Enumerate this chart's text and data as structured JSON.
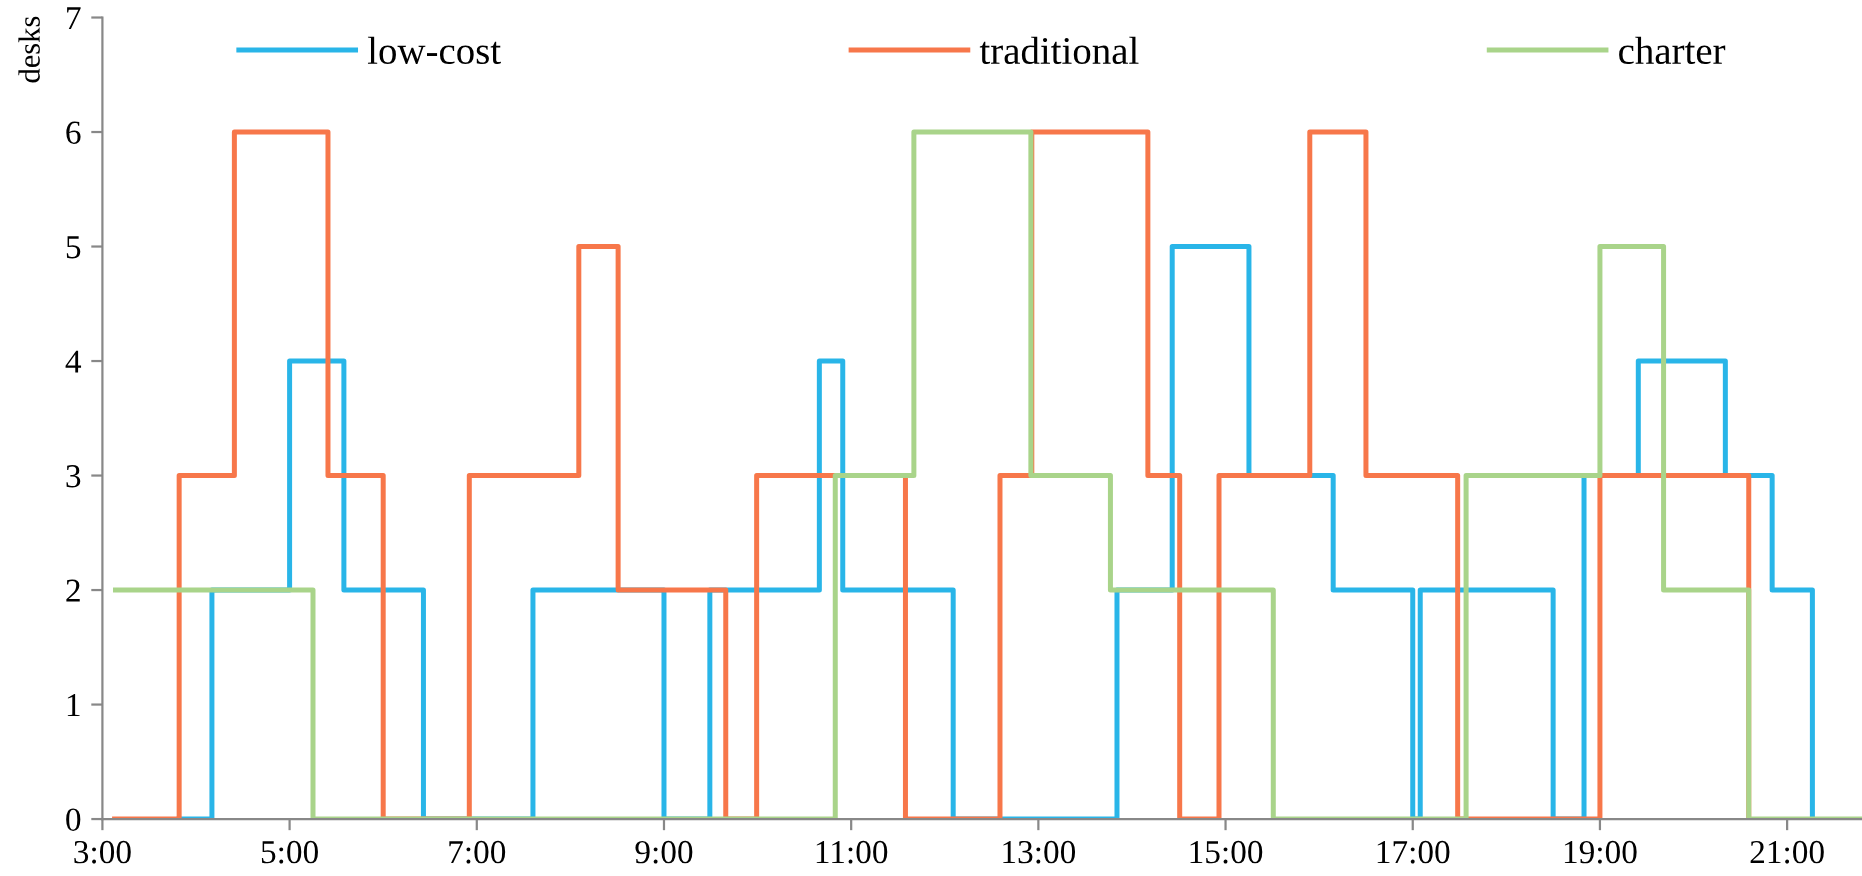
{
  "chart_data": {
    "type": "step",
    "ylabel": "desks",
    "xlim": [
      3,
      21.8
    ],
    "ylim": [
      0,
      7
    ],
    "xticks": [
      {
        "value": 3,
        "label": "3:00"
      },
      {
        "value": 5,
        "label": "5:00"
      },
      {
        "value": 7,
        "label": "7:00"
      },
      {
        "value": 9,
        "label": "9:00"
      },
      {
        "value": 11,
        "label": "11:00"
      },
      {
        "value": 13,
        "label": "13:00"
      },
      {
        "value": 15,
        "label": "15:00"
      },
      {
        "value": 17,
        "label": "17:00"
      },
      {
        "value": 19,
        "label": "19:00"
      },
      {
        "value": 21,
        "label": "21:00"
      }
    ],
    "yticks": [
      0,
      1,
      2,
      3,
      4,
      5,
      6,
      7
    ],
    "grid": false,
    "legend": "top",
    "marker": "none",
    "line_style": "solid",
    "series": [
      {
        "name": "low-cost",
        "color": "#29b5e8",
        "x": [
          3.82,
          4.17,
          5.0,
          5.58,
          6.43,
          7.6,
          9.0,
          9.49,
          10.66,
          10.91,
          12.09,
          13.84,
          14.43,
          15.25,
          16.15,
          17.0,
          17.08,
          18.5,
          18.83,
          19.41,
          20.34,
          20.84,
          21.27
        ],
        "values": [
          0,
          2,
          4,
          2,
          0,
          2,
          0,
          2,
          4,
          2,
          0,
          2,
          5,
          3,
          2,
          0,
          2,
          0,
          3,
          4,
          3,
          2,
          0
        ]
      },
      {
        "name": "traditional",
        "color": "#f7774a",
        "x": [
          3.13,
          3.82,
          4.41,
          5.41,
          6.0,
          6.92,
          8.09,
          8.51,
          9.66,
          9.99,
          11.58,
          12.59,
          12.93,
          14.17,
          14.51,
          14.93,
          15.9,
          16.5,
          17.48,
          19.0,
          20.59
        ],
        "values": [
          0,
          3,
          6,
          3,
          0,
          3,
          5,
          2,
          0,
          3,
          0,
          3,
          6,
          3,
          0,
          3,
          6,
          3,
          0,
          3,
          0
        ]
      },
      {
        "name": "charter",
        "color": "#a9d48a",
        "x": [
          3.14,
          5.25,
          10.83,
          11.67,
          12.92,
          13.77,
          15.51,
          17.57,
          19.0,
          19.68,
          20.59,
          21.8
        ],
        "values": [
          2,
          0,
          3,
          6,
          3,
          2,
          0,
          3,
          5,
          2,
          0,
          0
        ]
      }
    ]
  }
}
